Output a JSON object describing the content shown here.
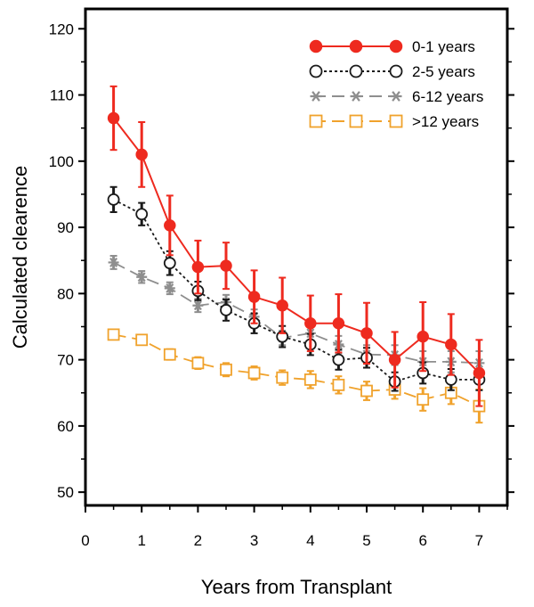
{
  "chart_data": {
    "type": "line",
    "title": "",
    "xlabel": "Years from Transplant",
    "ylabel": "Calculated clearence",
    "xlim": [
      0,
      7.5
    ],
    "ylim": [
      48,
      123
    ],
    "xticks": [
      0,
      1,
      2,
      3,
      4,
      5,
      6,
      7
    ],
    "yticks": [
      50,
      60,
      70,
      80,
      90,
      100,
      110,
      120
    ],
    "x": [
      0.5,
      1,
      1.5,
      2,
      2.5,
      3,
      3.5,
      4,
      4.5,
      5,
      5.5,
      6,
      6.5,
      7
    ],
    "grid": false,
    "legend_position": "top-right",
    "series": [
      {
        "name": "0-1 years",
        "color": "#ee2a1f",
        "marker": "filled-circle",
        "line": "solid",
        "values": [
          106.5,
          101,
          90.3,
          84,
          84.2,
          79.5,
          78.2,
          75.5,
          75.5,
          74,
          70,
          73.5,
          72.3,
          68
        ],
        "err": [
          4.8,
          4.9,
          4.5,
          4,
          3.5,
          4,
          4.2,
          4.2,
          4.4,
          4.6,
          4.2,
          5.2,
          4.6,
          5
        ]
      },
      {
        "name": "2-5 years",
        "color": "#1a1a1a",
        "marker": "open-circle",
        "line": "dotted",
        "values": [
          94.2,
          92,
          84.6,
          80.4,
          77.5,
          75.5,
          73.5,
          72.3,
          70,
          70.3,
          66.7,
          68,
          67,
          67
        ],
        "err": [
          1.9,
          1.7,
          1.8,
          1.4,
          1.6,
          1.5,
          1.6,
          1.6,
          1.5,
          1.5,
          1.4,
          1.6,
          1.6,
          1.6
        ]
      },
      {
        "name": "6-12 years",
        "color": "#8e8e8e",
        "marker": "asterisk",
        "line": "dashed",
        "values": [
          84.7,
          82.5,
          80.8,
          78.2,
          78.7,
          76.5,
          73.3,
          74,
          72.3,
          70.8,
          70.7,
          69.7,
          69.7,
          69.5
        ],
        "err": [
          1,
          0.9,
          0.9,
          1,
          1.1,
          1.1,
          1.1,
          1.2,
          1.3,
          1.4,
          1.5,
          1.6,
          1.6,
          1.8
        ]
      },
      {
        "name": ">12 years",
        "color": "#f0a22c",
        "marker": "open-square",
        "line": "dashed",
        "values": [
          73.8,
          73,
          70.8,
          69.5,
          68.5,
          68,
          67.3,
          67,
          66.2,
          65.3,
          65.5,
          64,
          65,
          63
        ],
        "err": [
          0.7,
          0.7,
          0.8,
          0.9,
          1,
          1,
          1.1,
          1.3,
          1.3,
          1.4,
          1.4,
          1.7,
          1.7,
          2.5
        ]
      }
    ]
  }
}
